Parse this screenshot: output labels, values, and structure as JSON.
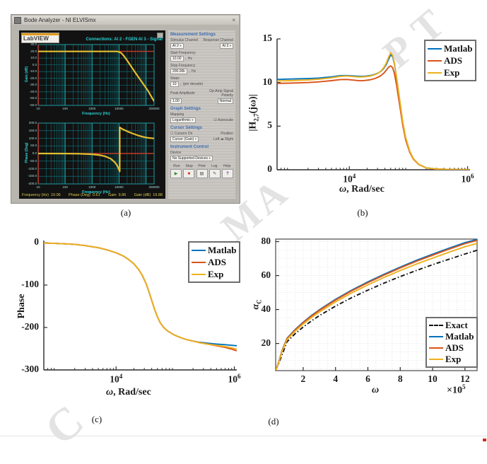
{
  "figure": {
    "captions": {
      "a": "(a)",
      "b": "(b)",
      "c": "(c)",
      "d": "(d)"
    },
    "watermark": {
      "fragments": [
        "PT",
        "MA",
        "C"
      ],
      "color": "#e3e3e3"
    }
  },
  "labview": {
    "window_title": "Bode Analyzer - NI ELVISmx",
    "logo_text": "LabVIEW",
    "connections": "Connections: AI 2 - FGEN   AI 3 - Signal",
    "close_glyph": "×",
    "gain_plot": {
      "ylabel": "Gain (dB)",
      "xlabel": "Frequency (Hz)",
      "ylim": [
        -60,
        30
      ],
      "yticks": [
        "30.0",
        "20.0",
        "10.0",
        "0.0",
        "-10.0",
        "-20.0",
        "-30.0",
        "-40.0",
        "-50.0",
        "-60.0"
      ],
      "xlim": [
        10,
        200000
      ],
      "xtick_values": [
        10,
        100,
        1000,
        10000,
        200000
      ],
      "xtick_labels": [
        "10",
        "100",
        "1000",
        "10000",
        "200000"
      ],
      "curve": {
        "color": "#e3bd30",
        "x": [
          10,
          100,
          1000,
          5000,
          8000,
          10000,
          12000,
          15000,
          20000,
          30000,
          50000,
          80000,
          120000,
          200000
        ],
        "y": [
          19.9,
          19.9,
          19.9,
          19.9,
          19.8,
          19.2,
          17.5,
          13.5,
          6.5,
          -4,
          -17,
          -28.5,
          -38.5,
          -54
        ]
      },
      "ref_line": {
        "color": "#c23b2b",
        "y": 20
      },
      "cursor_x": 10.3
    },
    "phase_plot": {
      "ylabel": "Phase (Deg)",
      "xlabel": "Frequency (Hz)",
      "ylim": [
        -200,
        200
      ],
      "yticks": [
        "200.0",
        "150.0",
        "100.0",
        "50.0",
        "0.0",
        "-50.0",
        "-100.0",
        "-150.0",
        "-200.0"
      ],
      "xlim": [
        10,
        200000
      ],
      "xtick_values": [
        10,
        100,
        1000,
        10000,
        200000
      ],
      "xtick_labels": [
        "10",
        "100",
        "1000",
        "10000",
        "200000"
      ],
      "curve": {
        "color": "#e3bd30",
        "x": [
          10,
          100,
          300,
          1000,
          2000,
          3000,
          5000,
          7000,
          8500,
          9500,
          10300,
          10600,
          10600,
          11500,
          13000,
          16000,
          22000,
          30000,
          50000,
          80000,
          120000,
          200000
        ],
        "y": [
          0,
          -0.5,
          -1.5,
          -5,
          -11,
          -18,
          -35,
          -58,
          -78,
          -98,
          -112,
          -118,
          172,
          168,
          162,
          154,
          143,
          133,
          119,
          109,
          103,
          99
        ]
      },
      "ref_line": {
        "color": "#c23b2b",
        "y": 0
      },
      "cursor_x": 10.3
    },
    "readouts": [
      {
        "label": "Frequency (Hz)",
        "value": "10.06"
      },
      {
        "label": "Phase (Deg)",
        "value": "0.61"
      },
      {
        "label": "Gain",
        "value": "9.86"
      },
      {
        "label": "Gain (dB)",
        "value": "19.88"
      }
    ],
    "panel": {
      "measurement": {
        "title": "Measurement Settings",
        "stimulus_label": "Stimulus Channel",
        "stimulus_value": "AI 2",
        "response_label": "Response Channel",
        "response_value": "AI 3",
        "start_freq_label": "Start Frequency",
        "start_freq_value": "10.00",
        "start_freq_unit": "Hz",
        "stop_freq_label": "Stop Frequency",
        "stop_freq_value": "200.00k",
        "stop_freq_unit": "Hz",
        "steps_label": "Steps",
        "steps_value": "10",
        "steps_suffix": "(per decade)",
        "peak_label": "Peak Amplitude",
        "peak_value": "1.00",
        "polarity_label": "Op-Amp Signal Polarity",
        "polarity_value": "Normal"
      },
      "graph": {
        "title": "Graph Settings",
        "mapping_label": "Mapping",
        "mapping_value": "Logarithmic",
        "autoscale_label": "Autoscale",
        "autoscale_checked": "☑"
      },
      "cursor": {
        "title": "Cursor Settings",
        "cursors_on_label": "Cursors On",
        "cursors_on_box": "☐",
        "position_label": "Position",
        "cursor_value": "Cursor (Gain)",
        "left_label": "Left",
        "right_label": "Right"
      },
      "instrument": {
        "title": "Instrument Control",
        "device_label": "Device",
        "device_value": "No Supported Devices"
      },
      "buttons": [
        {
          "label": "Run",
          "icon": "run-icon",
          "glyph": "▶",
          "color": "#2a8f2a"
        },
        {
          "label": "Stop",
          "icon": "stop-icon",
          "glyph": "■",
          "color": "#cc3b30"
        },
        {
          "label": "Print",
          "icon": "print-icon",
          "glyph": "▤",
          "color": "#444444"
        },
        {
          "label": "Log",
          "icon": "log-icon",
          "glyph": "✎",
          "color": "#444444"
        },
        {
          "label": "Help",
          "icon": "help-icon",
          "glyph": "?",
          "color": "#7a2a8a"
        }
      ]
    }
  },
  "chart_data": [
    {
      "id": "b",
      "type": "line",
      "xscale": "log",
      "xlim": [
        600,
        1100000
      ],
      "ylim": [
        0,
        15
      ],
      "title": "",
      "xlabel_sym": "ω",
      "xlabel_rest": ", Rad/sec",
      "ylabel_pre": "|H",
      "ylabel_sub": "2,7",
      "ylabel_post": "(jω)|",
      "xticks": [
        {
          "v": 10000,
          "t": "10",
          "sup": "4"
        },
        {
          "v": 1000000,
          "t": "10",
          "sup": "6"
        }
      ],
      "yticks": [
        {
          "v": 0,
          "t": "0"
        },
        {
          "v": 5,
          "t": "5"
        },
        {
          "v": 10,
          "t": "10"
        },
        {
          "v": 15,
          "t": "15"
        }
      ],
      "legend_position": "top-right",
      "x": [
        600,
        1000,
        2000,
        3000,
        4000,
        5000,
        7000,
        9000,
        12000,
        15000,
        18000,
        22000,
        26000,
        30000,
        34000,
        38000,
        42000,
        46000,
        50000,
        54000,
        58000,
        63000,
        70000,
        80000,
        90000,
        105000,
        120000,
        150000,
        200000,
        300000,
        500000,
        800000,
        1100000
      ],
      "series": [
        {
          "name": "Matlab",
          "color": "#0072BD",
          "style": "solid",
          "y": [
            10.35,
            10.4,
            10.45,
            10.5,
            10.58,
            10.65,
            10.78,
            10.8,
            10.74,
            10.7,
            10.72,
            10.78,
            10.9,
            11.05,
            11.28,
            11.6,
            12.05,
            12.65,
            13.2,
            12.95,
            12.1,
            10.5,
            8.2,
            5.4,
            3.6,
            2.1,
            1.3,
            0.6,
            0.22,
            0.08,
            0.03,
            0.02,
            0.02
          ]
        },
        {
          "name": "ADS",
          "color": "#D95319",
          "style": "solid",
          "y": [
            9.9,
            9.93,
            10.0,
            10.07,
            10.15,
            10.22,
            10.33,
            10.35,
            10.27,
            10.2,
            10.23,
            10.3,
            10.42,
            10.58,
            10.78,
            11.05,
            11.4,
            11.75,
            11.9,
            11.7,
            11.0,
            9.7,
            7.7,
            5.1,
            3.4,
            2.0,
            1.25,
            0.58,
            0.21,
            0.08,
            0.03,
            0.02,
            0.02
          ]
        },
        {
          "name": "Exp",
          "color": "#EDB120",
          "style": "solid",
          "y": [
            10.18,
            10.22,
            10.3,
            10.38,
            10.47,
            10.55,
            10.7,
            10.75,
            10.68,
            10.64,
            10.66,
            10.73,
            10.86,
            11.03,
            11.3,
            11.68,
            12.2,
            12.9,
            13.42,
            13.1,
            12.2,
            10.6,
            8.4,
            5.5,
            3.7,
            2.15,
            1.32,
            0.62,
            0.22,
            0.08,
            0.03,
            0.02,
            0.02
          ]
        }
      ]
    },
    {
      "id": "c",
      "type": "line",
      "xscale": "log",
      "xlim": [
        600,
        1100000
      ],
      "ylim": [
        -300,
        5
      ],
      "title": "",
      "xlabel_sym": "ω",
      "xlabel_rest": ", Rad/sec",
      "ylabel": "Phase",
      "xticks": [
        {
          "v": 10000,
          "t": "10",
          "sup": "4"
        },
        {
          "v": 1000000,
          "t": "10",
          "sup": "6"
        }
      ],
      "yticks": [
        {
          "v": 0,
          "t": "0"
        },
        {
          "v": -100,
          "t": "-100"
        },
        {
          "v": -200,
          "t": "-200"
        },
        {
          "v": -300,
          "t": "-300"
        }
      ],
      "legend_position": "top-right",
      "x": [
        600,
        1000,
        2000,
        3000,
        5000,
        7000,
        10000,
        13000,
        16000,
        20000,
        24000,
        28000,
        32000,
        36000,
        40000,
        45000,
        50000,
        56000,
        63000,
        71000,
        80000,
        95000,
        110000,
        130000,
        160000,
        200000,
        260000,
        350000,
        500000,
        700000,
        900000,
        1100000
      ],
      "series": [
        {
          "name": "Matlab",
          "color": "#0072BD",
          "style": "solid",
          "y": [
            -1,
            -2,
            -4,
            -7,
            -12,
            -17,
            -24,
            -31,
            -39,
            -50,
            -63,
            -78,
            -96,
            -116,
            -136,
            -158,
            -175,
            -189,
            -199,
            -206,
            -211,
            -217,
            -221,
            -225,
            -229,
            -232,
            -235,
            -237,
            -239,
            -240.5,
            -242,
            -243
          ]
        },
        {
          "name": "ADS",
          "color": "#D95319",
          "style": "solid",
          "y": [
            -1,
            -2,
            -4,
            -7,
            -12,
            -17,
            -24,
            -31,
            -39,
            -50,
            -63,
            -78,
            -96,
            -116,
            -136,
            -158,
            -175,
            -189,
            -199,
            -206,
            -211,
            -217,
            -221,
            -225,
            -229,
            -232,
            -236,
            -239,
            -243,
            -247,
            -251,
            -255
          ]
        },
        {
          "name": "Exp",
          "color": "#EDB120",
          "style": "solid",
          "y": [
            -1,
            -2,
            -4,
            -7,
            -12,
            -17,
            -24,
            -31,
            -39,
            -50,
            -63,
            -78,
            -96,
            -116,
            -136,
            -158,
            -175,
            -189,
            -199,
            -206,
            -211,
            -217,
            -221,
            -225,
            -229,
            -232,
            -236,
            -239,
            -242,
            -245,
            -248,
            -251
          ]
        }
      ]
    },
    {
      "id": "d",
      "type": "line",
      "xscale": "linear",
      "xlim": [
        0.3,
        12.75
      ],
      "ylim": [
        4,
        81.5
      ],
      "title": "",
      "xlabel_sym": "ω",
      "xlabel_rest": "",
      "ylabel_sym": "α",
      "ylabel_sub": "C",
      "multiplier_base": "×10",
      "multiplier_exp": "5",
      "grid": {
        "x0": 0.5,
        "xstep": 0.5,
        "y0": 5,
        "ystep": 5
      },
      "xticks": [
        {
          "v": 2,
          "t": "2"
        },
        {
          "v": 4,
          "t": "4"
        },
        {
          "v": 6,
          "t": "6"
        },
        {
          "v": 8,
          "t": "8"
        },
        {
          "v": 10,
          "t": "10"
        },
        {
          "v": 12,
          "t": "12"
        }
      ],
      "yticks": [
        {
          "v": 20,
          "t": "20"
        },
        {
          "v": 40,
          "t": "40"
        },
        {
          "v": 60,
          "t": "60"
        },
        {
          "v": 80,
          "t": "80"
        }
      ],
      "legend_position": "bottom-right",
      "x": [
        0.32,
        0.5,
        0.7,
        1,
        1.5,
        2,
        2.5,
        3,
        4,
        5,
        6,
        7,
        8,
        9,
        10,
        11,
        12,
        12.75
      ],
      "series": [
        {
          "name": "Exact",
          "color": "#111111",
          "style": "dashdot",
          "y": [
            4.5,
            8.5,
            13.5,
            21,
            25.7,
            29.7,
            33.2,
            36.4,
            42,
            47,
            51.4,
            55.6,
            59.4,
            63,
            66.4,
            69.6,
            72.7,
            74.9
          ]
        },
        {
          "name": "Matlab",
          "color": "#0072BD",
          "style": "solid",
          "y": [
            4.5,
            9.5,
            16,
            23,
            28.2,
            32.5,
            36.4,
            39.8,
            46,
            51.4,
            56.3,
            60.8,
            65,
            69,
            72.6,
            76.1,
            79.4,
            81.3
          ]
        },
        {
          "name": "ADS",
          "color": "#D95319",
          "style": "solid",
          "y": [
            4.5,
            9.5,
            15.8,
            22.8,
            27.9,
            32.2,
            36.1,
            39.5,
            45.6,
            51,
            55.8,
            60.3,
            64.5,
            68.4,
            72,
            75.5,
            78.8,
            80.7
          ]
        },
        {
          "name": "Exp",
          "color": "#EDB120",
          "style": "solid",
          "y": [
            4.4,
            9.2,
            15.4,
            22.2,
            27.2,
            31.4,
            35.2,
            38.5,
            44.5,
            49.8,
            54.5,
            58.9,
            63,
            66.8,
            70.3,
            73.7,
            77,
            78.9
          ]
        }
      ]
    }
  ]
}
